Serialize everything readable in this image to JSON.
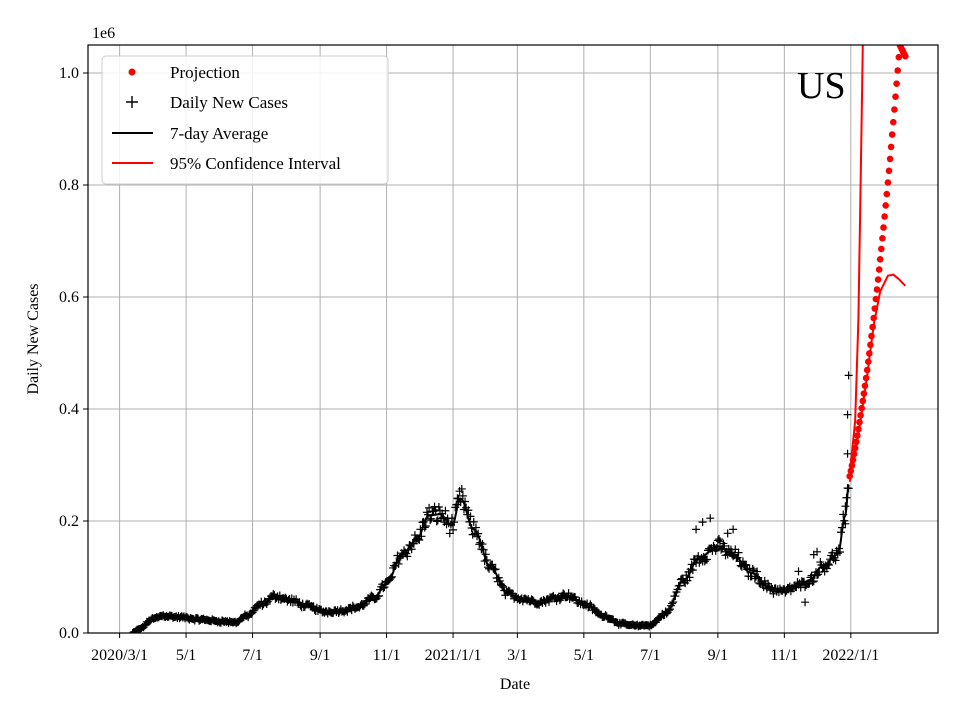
{
  "chart_data": {
    "type": "line",
    "xlabel": "Date",
    "ylabel": "Daily New Cases",
    "y_offset_label": "1e6",
    "y_scale": 1000000,
    "ylim": [
      0,
      1050000
    ],
    "xlim": [
      "2020-02-01",
      "2022-03-22"
    ],
    "grid": true,
    "legend_position": "top-left",
    "annotation": "US",
    "x_ticks": [
      {
        "date": "2020-03-01",
        "label": "2020/3/1"
      },
      {
        "date": "2020-05-01",
        "label": "5/1"
      },
      {
        "date": "2020-07-01",
        "label": "7/1"
      },
      {
        "date": "2020-09-01",
        "label": "9/1"
      },
      {
        "date": "2020-11-01",
        "label": "11/1"
      },
      {
        "date": "2021-01-01",
        "label": "2021/1/1"
      },
      {
        "date": "2021-03-01",
        "label": "3/1"
      },
      {
        "date": "2021-05-01",
        "label": "5/1"
      },
      {
        "date": "2021-07-01",
        "label": "7/1"
      },
      {
        "date": "2021-09-01",
        "label": "9/1"
      },
      {
        "date": "2021-11-01",
        "label": "11/1"
      },
      {
        "date": "2022-01-01",
        "label": "2022/1/1"
      }
    ],
    "y_ticks": [
      {
        "value": 0,
        "label": "0.0"
      },
      {
        "value": 200000,
        "label": "0.2"
      },
      {
        "value": 400000,
        "label": "0.4"
      },
      {
        "value": 600000,
        "label": "0.6"
      },
      {
        "value": 800000,
        "label": "0.8"
      },
      {
        "value": 1000000,
        "label": "1.0"
      }
    ],
    "legend": [
      {
        "label": "Projection",
        "marker": "dot",
        "color": "#ff0000"
      },
      {
        "label": "Daily New Cases",
        "marker": "plus",
        "color": "#000000"
      },
      {
        "label": "7-day Average",
        "marker": "line",
        "color": "#000000"
      },
      {
        "label": "95% Confidence Interval",
        "marker": "line",
        "color": "#ff0000"
      }
    ],
    "avg_knots": [
      [
        "2020-03-13",
        0
      ],
      [
        "2020-03-20",
        8000
      ],
      [
        "2020-03-31",
        25000
      ],
      [
        "2020-04-10",
        31000
      ],
      [
        "2020-04-25",
        28000
      ],
      [
        "2020-05-15",
        24000
      ],
      [
        "2020-06-01",
        21000
      ],
      [
        "2020-06-15",
        19000
      ],
      [
        "2020-06-25",
        30000
      ],
      [
        "2020-07-10",
        52000
      ],
      [
        "2020-07-22",
        66000
      ],
      [
        "2020-08-05",
        58000
      ],
      [
        "2020-08-20",
        48000
      ],
      [
        "2020-09-05",
        38000
      ],
      [
        "2020-09-20",
        40000
      ],
      [
        "2020-10-05",
        46000
      ],
      [
        "2020-10-20",
        62000
      ],
      [
        "2020-11-01",
        88000
      ],
      [
        "2020-11-15",
        140000
      ],
      [
        "2020-11-28",
        165000
      ],
      [
        "2020-12-10",
        210000
      ],
      [
        "2020-12-20",
        212000
      ],
      [
        "2020-12-31",
        192000
      ],
      [
        "2021-01-08",
        240000
      ],
      [
        "2021-01-20",
        185000
      ],
      [
        "2021-02-05",
        115000
      ],
      [
        "2021-02-20",
        70000
      ],
      [
        "2021-03-05",
        62000
      ],
      [
        "2021-03-20",
        55000
      ],
      [
        "2021-04-05",
        63000
      ],
      [
        "2021-04-15",
        68000
      ],
      [
        "2021-05-01",
        52000
      ],
      [
        "2021-05-20",
        30000
      ],
      [
        "2021-06-05",
        16000
      ],
      [
        "2021-06-20",
        13000
      ],
      [
        "2021-07-01",
        14000
      ],
      [
        "2021-07-15",
        35000
      ],
      [
        "2021-08-01",
        95000
      ],
      [
        "2021-08-15",
        135000
      ],
      [
        "2021-09-01",
        155000
      ],
      [
        "2021-09-15",
        140000
      ],
      [
        "2021-10-01",
        108000
      ],
      [
        "2021-10-20",
        80000
      ],
      [
        "2021-11-01",
        75000
      ],
      [
        "2021-11-15",
        85000
      ],
      [
        "2021-11-25",
        95000
      ],
      [
        "2021-12-05",
        118000
      ],
      [
        "2021-12-20",
        140000
      ],
      [
        "2021-12-27",
        210000
      ],
      [
        "2021-12-30",
        265000
      ]
    ],
    "projection": {
      "start_date": "2021-12-31",
      "end_date": "2022-02-20",
      "start_value": 280000,
      "peak_value": 1050000,
      "end_value": 1030000
    },
    "ci_upper": [
      [
        "2021-12-31",
        280000
      ],
      [
        "2022-01-05",
        380000
      ],
      [
        "2022-01-08",
        560000
      ],
      [
        "2022-01-10",
        800000
      ],
      [
        "2022-01-12",
        1050000
      ]
    ],
    "ci_lower": [
      [
        "2021-12-31",
        270000
      ],
      [
        "2022-01-04",
        310000
      ],
      [
        "2022-01-10",
        380000
      ],
      [
        "2022-01-16",
        460000
      ],
      [
        "2022-01-22",
        550000
      ],
      [
        "2022-01-28",
        610000
      ],
      [
        "2022-02-04",
        638000
      ],
      [
        "2022-02-09",
        640000
      ],
      [
        "2022-02-14",
        632000
      ],
      [
        "2022-02-20",
        620000
      ]
    ],
    "case_outliers": [
      [
        "2021-08-12",
        185000
      ],
      [
        "2021-08-18",
        198000
      ],
      [
        "2021-08-25",
        205000
      ],
      [
        "2021-09-10",
        178000
      ],
      [
        "2021-09-15",
        185000
      ],
      [
        "2021-12-27",
        195000
      ],
      [
        "2021-12-29",
        320000
      ],
      [
        "2021-12-29",
        390000
      ],
      [
        "2021-12-30",
        460000
      ],
      [
        "2021-11-20",
        55000
      ],
      [
        "2021-12-01",
        145000
      ],
      [
        "2021-11-28",
        140000
      ],
      [
        "2021-10-22",
        70000
      ],
      [
        "2021-11-14",
        110000
      ]
    ]
  }
}
